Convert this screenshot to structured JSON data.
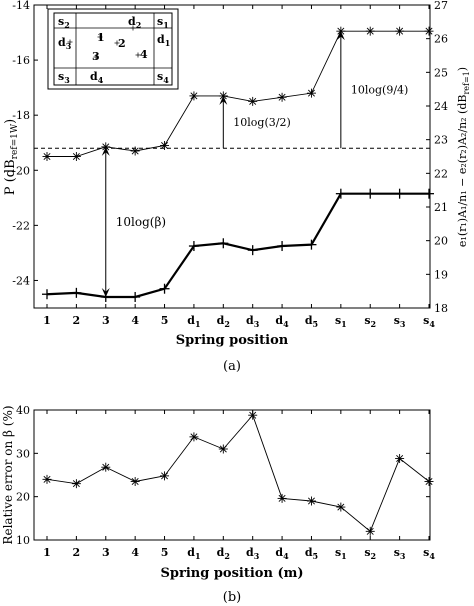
{
  "chart_data": [
    {
      "type": "line",
      "caption": "(a)",
      "xlabel": "Spring position",
      "categories": [
        "1",
        "2",
        "3",
        "4",
        "5",
        "d1",
        "d2",
        "d3",
        "d4",
        "d5",
        "s1",
        "s2",
        "s3",
        "s4"
      ],
      "ylabel": "P (dB_ref=1W)",
      "ylim": [
        -25,
        -14
      ],
      "yticks": [
        -24,
        -22,
        -20,
        -18,
        -16,
        -14
      ],
      "y2label": "e2(r2)A2/n2 - e1(r1)A1/n1 (dB_ref=1)",
      "y2lim": [
        18,
        27
      ],
      "y2ticks": [
        18,
        19,
        20,
        21,
        22,
        23,
        24,
        25,
        26,
        27
      ],
      "series": [
        {
          "axis": "left",
          "style": "thin",
          "values": [
            -19.5,
            -19.5,
            -19.15,
            -19.3,
            -19.1,
            -17.3,
            -17.3,
            -17.5,
            -17.35,
            -17.2,
            -14.95,
            -14.95,
            -14.95,
            -14.95
          ]
        },
        {
          "axis": "left",
          "style": "thick",
          "values": [
            -24.5,
            -24.45,
            -24.6,
            -24.6,
            -24.3,
            -22.75,
            -22.65,
            -22.9,
            -22.75,
            -22.7,
            -20.85,
            -20.85,
            -20.85,
            -20.85
          ]
        }
      ],
      "reference_line": -19.2,
      "annotations": [
        {
          "text": "10log(β)",
          "from": -24.6,
          "to": -19.15,
          "at": "3"
        },
        {
          "text": "10log(3/2)",
          "from": -19.2,
          "to": -17.3,
          "at": "d2"
        },
        {
          "text": "10log(9/4)",
          "from": -19.2,
          "to": -14.95,
          "at": "s1"
        }
      ],
      "inset": {
        "labels": [
          "s2",
          "d2",
          "s1",
          "d3",
          "1",
          "2",
          "d1",
          "3",
          "4",
          "s3",
          "d4",
          "s4"
        ]
      }
    },
    {
      "type": "line",
      "caption": "(b)",
      "xlabel": "Spring position (m)",
      "categories": [
        "1",
        "2",
        "3",
        "4",
        "5",
        "d1",
        "d2",
        "d3",
        "d4",
        "d5",
        "s1",
        "s2",
        "s3",
        "s4"
      ],
      "ylabel": "Relative error on β (%)",
      "ylim": [
        10,
        40
      ],
      "yticks": [
        10,
        20,
        30,
        40
      ],
      "series": [
        {
          "values": [
            24,
            23,
            26.8,
            23.5,
            24.8,
            33.8,
            31,
            38.8,
            19.6,
            19,
            17.6,
            12,
            28.8,
            23.5
          ]
        }
      ]
    }
  ]
}
